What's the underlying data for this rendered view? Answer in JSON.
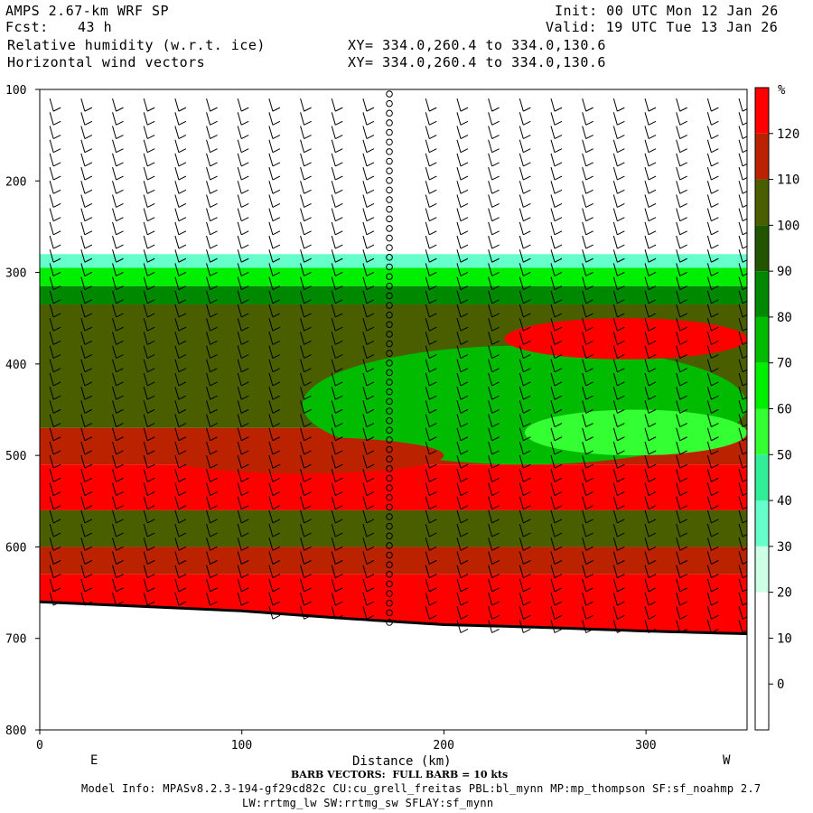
{
  "header": {
    "model": "AMPS 2.67-km WRF SP",
    "fcst_label": "Fcst:",
    "fcst_value": "43 h",
    "field1": "Relative humidity (w.r.t. ice)",
    "field2": "Horizontal wind vectors",
    "init": "Init: 00 UTC Mon 12 Jan 26",
    "valid": "Valid: 19 UTC Tue 13 Jan 26",
    "xy1": "XY= 334.0,260.4 to 334.0,130.6",
    "xy2": "XY= 334.0,260.4 to 334.0,130.6"
  },
  "footer": {
    "barb_note": "BARB VECTORS:  FULL BARB = 10 kts",
    "model_info_1": "Model Info: MPASv8.2.3-194-gf29cd82c CU:cu_grell_freitas PBL:bl_mynn MP:mp_thompson SF:sf_noahmp 2.7",
    "model_info_2": "LW:rrtmg_lw SW:rrtmg_sw SFLAY:sf_mynn"
  },
  "chart_data": {
    "type": "heatmap",
    "title": "Relative humidity (w.r.t. ice)",
    "xlabel": "Distance (km)",
    "ylabel": "",
    "xlim": [
      0,
      350
    ],
    "ylim": [
      800,
      100
    ],
    "x_ticks": [
      0,
      100,
      200,
      300
    ],
    "y_ticks": [
      100,
      200,
      300,
      400,
      500,
      600,
      700,
      800
    ],
    "x_end_labels": [
      "E",
      "W"
    ],
    "colorbar": {
      "unit": "%",
      "levels": [
        0,
        10,
        20,
        30,
        40,
        50,
        60,
        70,
        80,
        90,
        100,
        110,
        120
      ],
      "colors": [
        "#ffffff",
        "#ffffff",
        "#ffffff",
        "#ccffe6",
        "#66ffcc",
        "#33ee99",
        "#33ff33",
        "#00ee00",
        "#00bb00",
        "#008800",
        "#225500",
        "#4a5e00",
        "#bb2200",
        "#ff0000"
      ]
    },
    "terrain_pressure": [
      {
        "x": 0,
        "p": 660
      },
      {
        "x": 50,
        "p": 665
      },
      {
        "x": 100,
        "p": 670
      },
      {
        "x": 150,
        "p": 678
      },
      {
        "x": 200,
        "p": 685
      },
      {
        "x": 250,
        "p": 688
      },
      {
        "x": 300,
        "p": 692
      },
      {
        "x": 350,
        "p": 695
      }
    ],
    "rh_bands": [
      {
        "p_top": 100,
        "p_bot": 280,
        "rh": 10
      },
      {
        "p_top": 280,
        "p_bot": 295,
        "rh": 35
      },
      {
        "p_top": 295,
        "p_bot": 315,
        "rh": 60
      },
      {
        "p_top": 315,
        "p_bot": 335,
        "rh": 85
      },
      {
        "p_top": 335,
        "p_bot": 470,
        "rh": 100
      },
      {
        "p_top": 470,
        "p_bot": 510,
        "rh": 115
      },
      {
        "p_top": 510,
        "p_bot": 560,
        "rh": 125
      },
      {
        "p_top": 560,
        "p_bot": 600,
        "rh": 105
      },
      {
        "p_top": 600,
        "p_bot": 630,
        "rh": 115
      },
      {
        "p_top": 630,
        "p_bot": 700,
        "rh": 125
      }
    ],
    "features": [
      {
        "x0": 130,
        "x1": 350,
        "p_top": 380,
        "p_bot": 510,
        "rh": 70
      },
      {
        "x0": 240,
        "x1": 350,
        "p_top": 450,
        "p_bot": 500,
        "rh": 55
      },
      {
        "x0": 230,
        "x1": 350,
        "p_top": 350,
        "p_bot": 395,
        "rh": 120
      },
      {
        "x0": 60,
        "x1": 200,
        "p_top": 480,
        "p_bot": 520,
        "rh": 115
      }
    ],
    "calm_column_x": 173
  }
}
